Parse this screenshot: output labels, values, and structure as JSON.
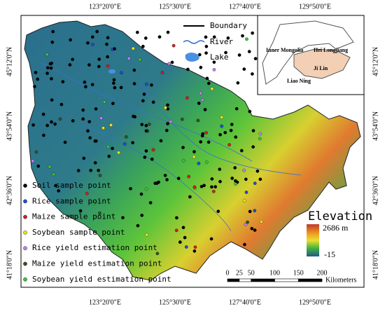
{
  "map": {
    "lon_labels_top": [
      "123°20'0\"E",
      "125°30'0\"E",
      "127°40'0\"E",
      "129°50'0\"E"
    ],
    "lon_labels_bottom": [
      "123°20'0\"E",
      "125°30'0\"E",
      "127°40'0\"E",
      "129°50'0\"E"
    ],
    "lat_labels_left": [
      "45°12'0\"N",
      "43°54'0\"N",
      "42°36'0\"N",
      "41°18'0\"N"
    ],
    "lat_labels_right": [
      "45°12'0\"N",
      "43°54'0\"N",
      "42°36'0\"N",
      "41°18'0\"N"
    ],
    "top_legend": [
      "Boundary",
      "River",
      "Lake"
    ],
    "inset": [
      "Inner Mongolia",
      "Hei Longjiang",
      "Ji Lin",
      "Liao Ning"
    ],
    "point_legend": [
      "Soil sample point",
      "Rice sample point",
      "Maize sample point",
      "Soybean sample point",
      "Rice yield estimation point",
      "Maize yield estimation point",
      "Soybean yield estimation point"
    ],
    "elevation": {
      "title": "Elevation",
      "max": "2686 m",
      "min": -15
    },
    "scale": {
      "ticks": [
        0,
        25,
        50,
        100,
        150,
        200
      ],
      "unit": "Kilometers"
    }
  }
}
